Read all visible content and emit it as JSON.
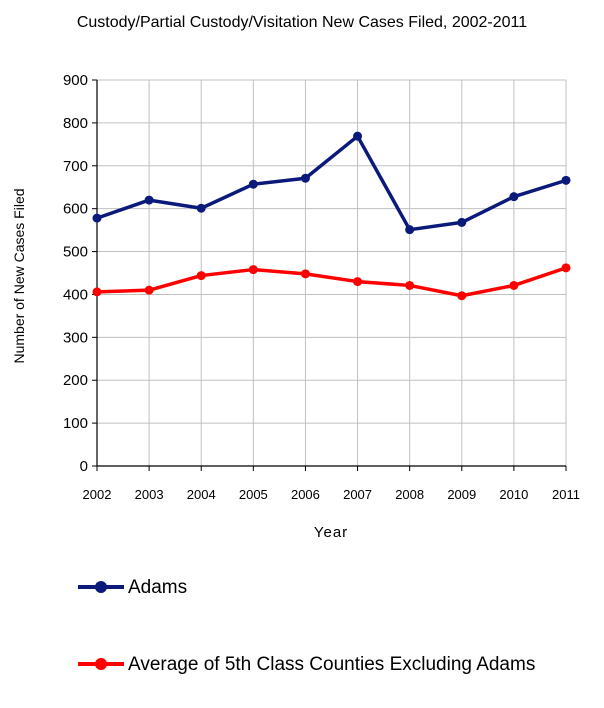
{
  "chart_data": {
    "type": "line",
    "title": "Custody/Partial Custody/Visitation New Cases Filed, 2002-2011",
    "xlabel": "Year",
    "ylabel": "Number of New Cases Filed",
    "ylim": [
      0,
      900
    ],
    "yticks": [
      0,
      100,
      200,
      300,
      400,
      500,
      600,
      700,
      800,
      900
    ],
    "categories": [
      "2002",
      "2003",
      "2004",
      "2005",
      "2006",
      "2007",
      "2008",
      "2009",
      "2010",
      "2011"
    ],
    "grid": true,
    "legend_position": "bottom",
    "series": [
      {
        "name": "Adams",
        "color": "#0b1a7a",
        "values": [
          578,
          620,
          601,
          657,
          671,
          769,
          551,
          568,
          628,
          666
        ]
      },
      {
        "name": "Average of 5th Class Counties Excluding Adams",
        "color": "#ff0000",
        "values": [
          406,
          410,
          444,
          458,
          448,
          430,
          421,
          397,
          421,
          462
        ]
      }
    ]
  }
}
